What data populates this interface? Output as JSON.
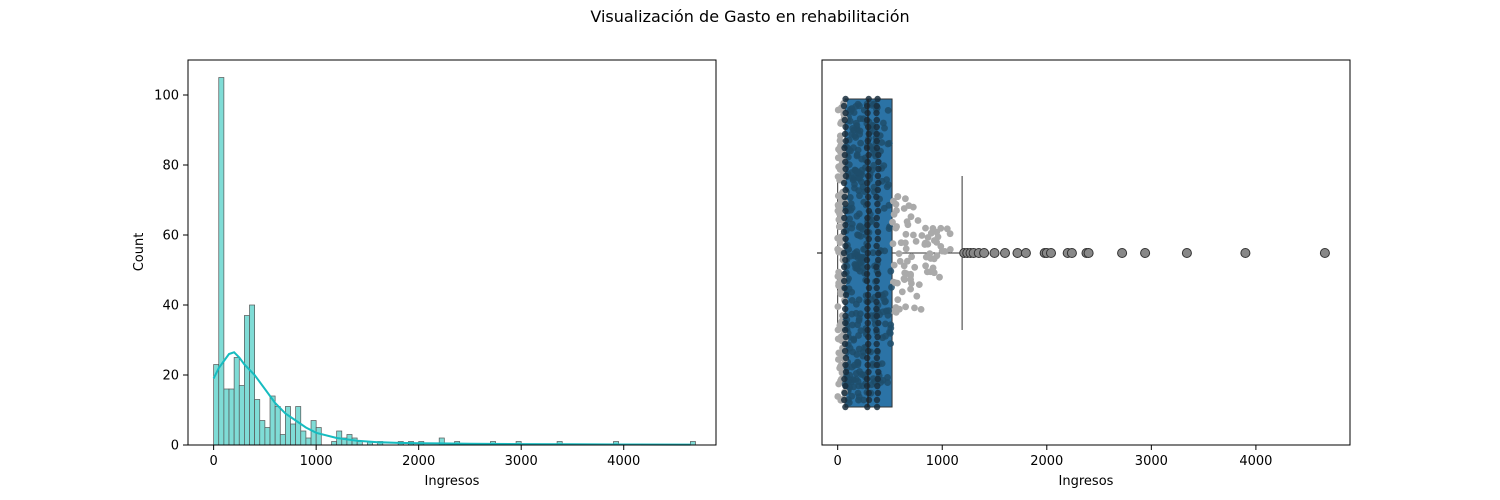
{
  "figure": {
    "title": "Visualización de Gasto en rehabilitación"
  },
  "chart_data": [
    {
      "type": "histogram",
      "xlabel": "Ingresos",
      "ylabel": "Count",
      "xlim": [
        -250,
        4900
      ],
      "ylim": [
        0,
        110
      ],
      "xticks": [
        0,
        1000,
        2000,
        3000,
        4000
      ],
      "yticks": [
        0,
        20,
        40,
        60,
        80,
        100
      ],
      "bin_width": 50,
      "bins": [
        {
          "x": 0,
          "count": 23
        },
        {
          "x": 50,
          "count": 105
        },
        {
          "x": 100,
          "count": 16
        },
        {
          "x": 150,
          "count": 16
        },
        {
          "x": 200,
          "count": 25
        },
        {
          "x": 250,
          "count": 17
        },
        {
          "x": 300,
          "count": 37
        },
        {
          "x": 350,
          "count": 40
        },
        {
          "x": 400,
          "count": 13
        },
        {
          "x": 450,
          "count": 7
        },
        {
          "x": 500,
          "count": 5
        },
        {
          "x": 550,
          "count": 14
        },
        {
          "x": 600,
          "count": 11
        },
        {
          "x": 650,
          "count": 3
        },
        {
          "x": 700,
          "count": 11
        },
        {
          "x": 750,
          "count": 6
        },
        {
          "x": 800,
          "count": 11
        },
        {
          "x": 850,
          "count": 4
        },
        {
          "x": 900,
          "count": 2
        },
        {
          "x": 950,
          "count": 7
        },
        {
          "x": 1000,
          "count": 5
        },
        {
          "x": 1150,
          "count": 1
        },
        {
          "x": 1200,
          "count": 4
        },
        {
          "x": 1250,
          "count": 2
        },
        {
          "x": 1300,
          "count": 3
        },
        {
          "x": 1350,
          "count": 2
        },
        {
          "x": 1400,
          "count": 1
        },
        {
          "x": 1500,
          "count": 1
        },
        {
          "x": 1600,
          "count": 1
        },
        {
          "x": 1800,
          "count": 1
        },
        {
          "x": 1900,
          "count": 1
        },
        {
          "x": 2000,
          "count": 1
        },
        {
          "x": 2200,
          "count": 2
        },
        {
          "x": 2350,
          "count": 1
        },
        {
          "x": 2700,
          "count": 1
        },
        {
          "x": 2950,
          "count": 1
        },
        {
          "x": 3350,
          "count": 1
        },
        {
          "x": 3900,
          "count": 1
        },
        {
          "x": 4650,
          "count": 1
        }
      ],
      "kde": [
        {
          "x": 0,
          "y": 19
        },
        {
          "x": 50,
          "y": 22
        },
        {
          "x": 100,
          "y": 24
        },
        {
          "x": 150,
          "y": 26
        },
        {
          "x": 200,
          "y": 26.5
        },
        {
          "x": 250,
          "y": 25
        },
        {
          "x": 300,
          "y": 23
        },
        {
          "x": 400,
          "y": 20
        },
        {
          "x": 500,
          "y": 16
        },
        {
          "x": 600,
          "y": 12
        },
        {
          "x": 700,
          "y": 9
        },
        {
          "x": 800,
          "y": 7
        },
        {
          "x": 900,
          "y": 5
        },
        {
          "x": 1000,
          "y": 3.5
        },
        {
          "x": 1200,
          "y": 2
        },
        {
          "x": 1400,
          "y": 1.2
        },
        {
          "x": 1600,
          "y": 0.8
        },
        {
          "x": 1800,
          "y": 0.6
        },
        {
          "x": 2000,
          "y": 0.5
        },
        {
          "x": 2200,
          "y": 0.45
        },
        {
          "x": 2500,
          "y": 0.35
        },
        {
          "x": 3000,
          "y": 0.25
        },
        {
          "x": 3500,
          "y": 0.2
        },
        {
          "x": 4000,
          "y": 0.15
        },
        {
          "x": 4650,
          "y": 0.1
        }
      ],
      "colors": {
        "bar": "#7fdcd6",
        "edge": "#555555",
        "kde": "#17bcc0"
      }
    },
    {
      "type": "boxplot",
      "xlabel": "Ingresos",
      "xlim": [
        -150,
        4900
      ],
      "xticks": [
        0,
        1000,
        2000,
        3000,
        4000
      ],
      "box": {
        "whisker_low": 0,
        "q1": 70,
        "median": 290,
        "q3": 520,
        "whisker_high": 1190
      },
      "outliers": [
        1210,
        1240,
        1270,
        1300,
        1350,
        1400,
        1500,
        1600,
        1720,
        1800,
        1980,
        2000,
        2040,
        2200,
        2240,
        2380,
        2400,
        2720,
        2940,
        3340,
        3900,
        4660
      ],
      "swarm": "jittered grey points spread vertically around the box between about 0 and 1200 on the x axis",
      "colors": {
        "box": "#2b73a6",
        "swarm": "#aaaaaa",
        "swarm_dark": "#1f4e6b",
        "outlier_face": "#888888"
      }
    }
  ]
}
